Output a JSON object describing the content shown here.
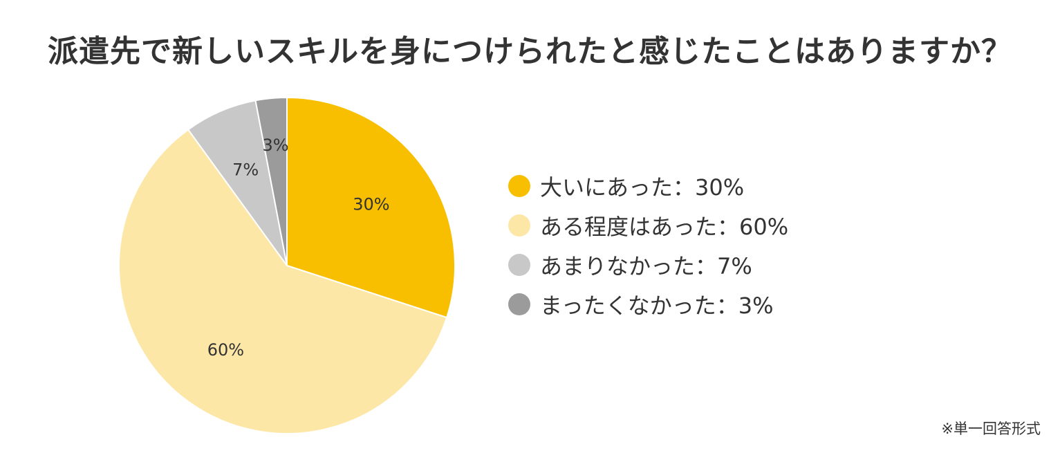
{
  "chart_data": {
    "type": "pie",
    "title": "派遣先で新しいスキルを身につけられたと感じたことはありますか？",
    "slices": [
      {
        "label": "大いにあった",
        "value": 30,
        "value_label": "30%",
        "legend_text": "大いにあった：30%",
        "color": "#F7BF00"
      },
      {
        "label": "ある程度はあった",
        "value": 60,
        "value_label": "60%",
        "legend_text": "ある程度はあった：60%",
        "color": "#FDE7A7"
      },
      {
        "label": "あまりなかった",
        "value": 7,
        "value_label": "7%",
        "legend_text": "あまりなかった：7%",
        "color": "#C8C8C8"
      },
      {
        "label": "まったくなかった",
        "value": 3,
        "value_label": "3%",
        "legend_text": "まったくなかった：3%",
        "color": "#9B9B9B"
      }
    ],
    "legend_position": "right",
    "note": "※単一回答形式"
  }
}
